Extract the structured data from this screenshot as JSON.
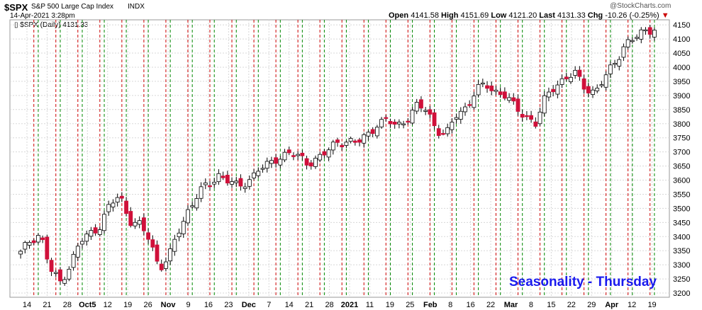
{
  "header": {
    "symbol": "$SPX",
    "name": "S&P 500 Large Cap Index",
    "exchange": "INDX",
    "timestamp": "14-Apr-2021 3:28pm",
    "watermark": "@StockCharts.com",
    "open_label": "Open",
    "open": "4141.58",
    "high_label": "High",
    "high": "4151.69",
    "low_label": "Low",
    "low": "4121.20",
    "last_label": "Last",
    "last": "4131.33",
    "chg_label": "Chg",
    "chg": "-10.26 (-0.25%)",
    "legend": "$SPX (Daily) 4131.33"
  },
  "annotation": "Seasonality - Thursday",
  "colors": {
    "up_candle": "#ffffff",
    "down_candle": "#d0103a",
    "annotation": "#1a1aee",
    "thursday_line": "#cc0000",
    "friday_line": "#008800",
    "grid": "#d8d8d8"
  },
  "chart_data": {
    "type": "candlestick",
    "y_ticks": [
      3200,
      3250,
      3300,
      3350,
      3400,
      3450,
      3500,
      3550,
      3600,
      3650,
      3700,
      3750,
      3800,
      3850,
      3900,
      3950,
      4000,
      4050,
      4100,
      4150
    ],
    "ylim": [
      3185,
      4168
    ],
    "x_labels": [
      {
        "label": "14",
        "bold": false
      },
      {
        "label": "21",
        "bold": false
      },
      {
        "label": "28",
        "bold": false
      },
      {
        "label": "Oct5",
        "bold": true
      },
      {
        "label": "12",
        "bold": false
      },
      {
        "label": "19",
        "bold": false
      },
      {
        "label": "26",
        "bold": false
      },
      {
        "label": "Nov",
        "bold": true
      },
      {
        "label": "9",
        "bold": false
      },
      {
        "label": "16",
        "bold": false
      },
      {
        "label": "23",
        "bold": false
      },
      {
        "label": "Dec",
        "bold": true
      },
      {
        "label": "7",
        "bold": false
      },
      {
        "label": "14",
        "bold": false
      },
      {
        "label": "21",
        "bold": false
      },
      {
        "label": "28",
        "bold": false
      },
      {
        "label": "2021",
        "bold": true
      },
      {
        "label": "11",
        "bold": false
      },
      {
        "label": "19",
        "bold": false
      },
      {
        "label": "25",
        "bold": false
      },
      {
        "label": "Feb",
        "bold": true
      },
      {
        "label": "8",
        "bold": false
      },
      {
        "label": "16",
        "bold": false
      },
      {
        "label": "22",
        "bold": false
      },
      {
        "label": "Mar",
        "bold": true
      },
      {
        "label": "8",
        "bold": false
      },
      {
        "label": "15",
        "bold": false
      },
      {
        "label": "22",
        "bold": false
      },
      {
        "label": "29",
        "bold": false
      },
      {
        "label": "Apr",
        "bold": true
      },
      {
        "label": "12",
        "bold": false
      },
      {
        "label": "19",
        "bold": false
      }
    ],
    "vertical_markers": "Thursday sessions marked with red dashed lines, Friday sessions with green dashed lines",
    "close_waypoints": [
      3340,
      3390,
      3410,
      3280,
      3240,
      3300,
      3380,
      3410,
      3440,
      3510,
      3545,
      3460,
      3440,
      3390,
      3290,
      3330,
      3420,
      3500,
      3560,
      3580,
      3620,
      3600,
      3570,
      3600,
      3640,
      3650,
      3680,
      3700,
      3680,
      3660,
      3680,
      3700,
      3735,
      3740,
      3730,
      3760,
      3800,
      3810,
      3790,
      3820,
      3860,
      3850,
      3780,
      3760,
      3830,
      3860,
      3920,
      3935,
      3915,
      3900,
      3850,
      3830,
      3800,
      3890,
      3940,
      3960,
      3975,
      3930,
      3910,
      3960,
      4020,
      4080,
      4100,
      4130,
      4140
    ]
  }
}
